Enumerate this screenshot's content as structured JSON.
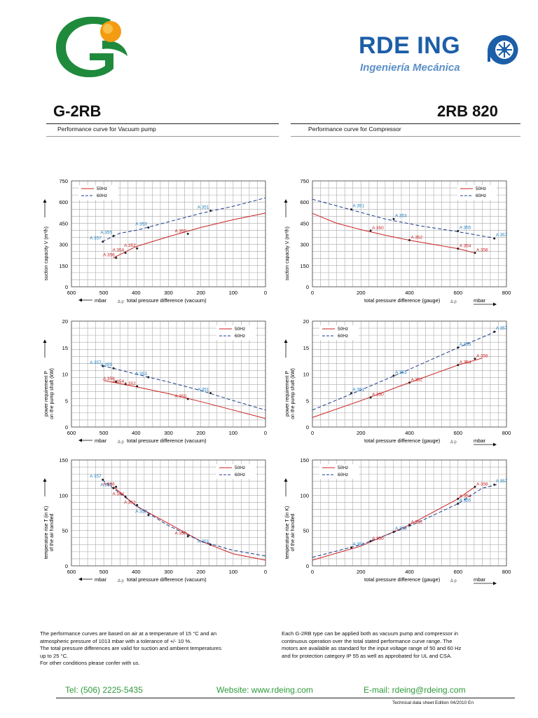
{
  "header": {
    "brand_name": "RDE ING",
    "brand_tagline": "Ingeniería Mecánica",
    "left_model": "G-2RB",
    "right_model": "2RB 820",
    "left_subtitle": "Performance curve for Vacuum pump",
    "right_subtitle": "Performance curve for Compressor"
  },
  "colors": {
    "red": "#cc2222",
    "blue": "#1a3a8c",
    "label_blue": "#1f7fc0",
    "green": "#2e9a3a",
    "grid": "#a9a9a9",
    "brand_blue": "#1c5ea8"
  },
  "chart_data": [
    {
      "id": "vac_capacity",
      "type": "line",
      "xlim": [
        600,
        0
      ],
      "ylim": [
        0,
        750
      ],
      "xticks": [
        600,
        500,
        400,
        300,
        200,
        100,
        0
      ],
      "yticks": [
        0,
        150,
        300,
        450,
        600,
        750
      ],
      "xlabel": "total pressure difference (vacuum)",
      "unit_label": "mbar",
      "delta_label": "Δ p",
      "ylabel": [
        "suction capacity V (m³/h)"
      ],
      "legend": [
        "50Hz",
        "60Hz"
      ],
      "legend_position": "top-left",
      "series": [
        {
          "name": "50Hz",
          "style": "solid",
          "x": [
            470,
            400,
            300,
            200,
            100,
            0
          ],
          "y": [
            205,
            285,
            355,
            420,
            475,
            522
          ]
        },
        {
          "name": "60Hz",
          "style": "dashed",
          "x": [
            505,
            450,
            400,
            300,
            200,
            100,
            0
          ],
          "y": [
            320,
            380,
            400,
            460,
            520,
            570,
            630
          ]
        }
      ],
      "points": [
        {
          "label": "A 357",
          "x": 503,
          "y": 320,
          "s": 1
        },
        {
          "label": "A 355",
          "x": 470,
          "y": 360,
          "s": 1
        },
        {
          "label": "A 353",
          "x": 362,
          "y": 420,
          "s": 1
        },
        {
          "label": "A 351",
          "x": 170,
          "y": 538,
          "s": 1
        },
        {
          "label": "A 356",
          "x": 462,
          "y": 205,
          "s": 0
        },
        {
          "label": "A 354",
          "x": 433,
          "y": 240,
          "s": 0
        },
        {
          "label": "A 352",
          "x": 397,
          "y": 272,
          "s": 0
        },
        {
          "label": "A 350",
          "x": 240,
          "y": 375,
          "s": 0
        }
      ]
    },
    {
      "id": "comp_capacity",
      "type": "line",
      "xlim": [
        0,
        800
      ],
      "ylim": [
        0,
        750
      ],
      "xticks": [
        0,
        200,
        400,
        600,
        800
      ],
      "yticks": [
        0,
        150,
        300,
        450,
        600,
        750
      ],
      "xlabel": "total pressure difference (gauge)",
      "unit_label": "mbar",
      "delta_label": "Δ p",
      "ylabel": [
        "suction capacity V (m³/h)"
      ],
      "legend": [
        "50Hz",
        "60Hz"
      ],
      "legend_position": "top-right",
      "series": [
        {
          "name": "50Hz",
          "style": "solid",
          "x": [
            0,
            100,
            200,
            300,
            400,
            500,
            600,
            670
          ],
          "y": [
            520,
            450,
            405,
            365,
            330,
            300,
            270,
            240
          ]
        },
        {
          "name": "60Hz",
          "style": "dashed",
          "x": [
            0,
            150,
            300,
            450,
            600,
            750
          ],
          "y": [
            620,
            550,
            480,
            430,
            390,
            345
          ]
        }
      ],
      "points": [
        {
          "label": "A 351",
          "x": 160,
          "y": 548,
          "s": 1
        },
        {
          "label": "A 353",
          "x": 335,
          "y": 480,
          "s": 1
        },
        {
          "label": "A 355",
          "x": 600,
          "y": 395,
          "s": 1
        },
        {
          "label": "A 357",
          "x": 750,
          "y": 342,
          "s": 1
        },
        {
          "label": "A 350",
          "x": 240,
          "y": 398,
          "s": 0
        },
        {
          "label": "A 352",
          "x": 400,
          "y": 330,
          "s": 0
        },
        {
          "label": "A 354",
          "x": 600,
          "y": 270,
          "s": 0
        },
        {
          "label": "A 356",
          "x": 670,
          "y": 240,
          "s": 0
        }
      ]
    },
    {
      "id": "vac_power",
      "type": "line",
      "xlim": [
        600,
        0
      ],
      "ylim": [
        0,
        20
      ],
      "xticks": [
        600,
        500,
        400,
        300,
        200,
        100,
        0
      ],
      "yticks": [
        0,
        5,
        10,
        15,
        20
      ],
      "xlabel": "total pressure difference (vacuum)",
      "unit_label": "mbar",
      "delta_label": "Δ p",
      "ylabel": [
        "power requirement P",
        "on the pump shaft (kW)"
      ],
      "legend": [
        "50Hz",
        "60Hz"
      ],
      "legend_position": "top-right",
      "series": [
        {
          "name": "50Hz",
          "style": "solid",
          "x": [
            500,
            400,
            300,
            200,
            100,
            0
          ],
          "y": [
            8.8,
            7.6,
            6.3,
            4.8,
            3.2,
            1.6
          ]
        },
        {
          "name": "60Hz",
          "style": "dashed",
          "x": [
            505,
            400,
            300,
            200,
            100,
            0
          ],
          "y": [
            11.6,
            10.0,
            8.5,
            6.9,
            5.0,
            3.2
          ]
        }
      ],
      "points": [
        {
          "label": "A 357",
          "x": 503,
          "y": 11.5,
          "s": 1
        },
        {
          "label": "A 355",
          "x": 470,
          "y": 11.1,
          "s": 1
        },
        {
          "label": "A 353",
          "x": 362,
          "y": 9.4,
          "s": 1
        },
        {
          "label": "A 351",
          "x": 170,
          "y": 6.4,
          "s": 1
        },
        {
          "label": "A 356",
          "x": 462,
          "y": 8.6,
          "s": 0
        },
        {
          "label": "A 354",
          "x": 433,
          "y": 8.1,
          "s": 0
        },
        {
          "label": "A 352",
          "x": 397,
          "y": 7.7,
          "s": 0
        },
        {
          "label": "A 350",
          "x": 240,
          "y": 5.3,
          "s": 0
        }
      ]
    },
    {
      "id": "comp_power",
      "type": "line",
      "xlim": [
        0,
        800
      ],
      "ylim": [
        0,
        20
      ],
      "xticks": [
        0,
        200,
        400,
        600,
        800
      ],
      "yticks": [
        0,
        5,
        10,
        15,
        20
      ],
      "xlabel": "total pressure difference (gauge)",
      "unit_label": "mbar",
      "delta_label": "Δ p",
      "ylabel": [
        "power requirement P",
        "on the pump shaft (kW)"
      ],
      "legend": [
        "50Hz",
        "60Hz"
      ],
      "legend_position": "top-left",
      "series": [
        {
          "name": "50Hz",
          "style": "solid",
          "x": [
            0,
            200,
            400,
            600,
            700
          ],
          "y": [
            1.8,
            5.0,
            8.4,
            11.7,
            13.0
          ]
        },
        {
          "name": "60Hz",
          "style": "dashed",
          "x": [
            0,
            200,
            400,
            600,
            760
          ],
          "y": [
            3.2,
            7.0,
            10.9,
            15.0,
            18.1
          ]
        }
      ],
      "points": [
        {
          "label": "A 351",
          "x": 160,
          "y": 6.4,
          "s": 1
        },
        {
          "label": "A 353",
          "x": 335,
          "y": 9.7,
          "s": 1
        },
        {
          "label": "A 355",
          "x": 600,
          "y": 15.0,
          "s": 1
        },
        {
          "label": "A 357",
          "x": 750,
          "y": 18.0,
          "s": 1
        },
        {
          "label": "A 350",
          "x": 240,
          "y": 5.6,
          "s": 0
        },
        {
          "label": "A 352",
          "x": 400,
          "y": 8.4,
          "s": 0
        },
        {
          "label": "A 354",
          "x": 600,
          "y": 11.7,
          "s": 0
        },
        {
          "label": "A 356",
          "x": 670,
          "y": 12.9,
          "s": 0
        }
      ]
    },
    {
      "id": "vac_temp",
      "type": "line",
      "xlim": [
        600,
        0
      ],
      "ylim": [
        0,
        150
      ],
      "xticks": [
        600,
        500,
        400,
        300,
        200,
        100,
        0
      ],
      "yticks": [
        0,
        50,
        100,
        150
      ],
      "xlabel": "total pressure difference (vacuum)",
      "unit_label": "mbar",
      "delta_label": "Δ p",
      "ylabel": [
        "temperature rise T (in K)",
        "of the air handled"
      ],
      "legend": [
        "50Hz",
        "60Hz"
      ],
      "legend_position": "top-right",
      "series": [
        {
          "name": "50Hz",
          "style": "solid",
          "x": [
            470,
            400,
            300,
            200,
            100,
            0
          ],
          "y": [
            112,
            85,
            60,
            35,
            17,
            8
          ]
        },
        {
          "name": "60Hz",
          "style": "dashed",
          "x": [
            505,
            400,
            300,
            200,
            100,
            0
          ],
          "y": [
            122,
            85,
            57,
            35,
            22,
            14
          ]
        }
      ],
      "points": [
        {
          "label": "A 357",
          "x": 503,
          "y": 122,
          "s": 1
        },
        {
          "label": "A 355",
          "x": 470,
          "y": 110,
          "s": 1
        },
        {
          "label": "A 353",
          "x": 362,
          "y": 72,
          "s": 1
        },
        {
          "label": "A 351",
          "x": 170,
          "y": 30,
          "s": 1
        },
        {
          "label": "A 356",
          "x": 462,
          "y": 112,
          "s": 0
        },
        {
          "label": "A 354",
          "x": 433,
          "y": 98,
          "s": 0
        },
        {
          "label": "A 352",
          "x": 397,
          "y": 86,
          "s": 0
        },
        {
          "label": "A 350",
          "x": 240,
          "y": 42,
          "s": 0
        }
      ]
    },
    {
      "id": "comp_temp",
      "type": "line",
      "xlim": [
        0,
        800
      ],
      "ylim": [
        0,
        150
      ],
      "xticks": [
        0,
        200,
        400,
        600,
        800
      ],
      "yticks": [
        0,
        50,
        100,
        150
      ],
      "xlabel": "total pressure difference (gauge)",
      "unit_label": "mbar",
      "delta_label": "Δ p",
      "ylabel": [
        "temperature rise T (in K)",
        "of the air handled"
      ],
      "legend": [
        "50Hz",
        "60Hz"
      ],
      "legend_position": "top-left",
      "series": [
        {
          "name": "50Hz",
          "style": "solid",
          "x": [
            0,
            200,
            400,
            600,
            670
          ],
          "y": [
            8,
            28,
            58,
            95,
            112
          ]
        },
        {
          "name": "60Hz",
          "style": "dashed",
          "x": [
            0,
            200,
            400,
            600,
            700,
            760
          ],
          "y": [
            12,
            30,
            56,
            88,
            110,
            115
          ]
        }
      ],
      "points": [
        {
          "label": "A 351",
          "x": 160,
          "y": 26,
          "s": 1
        },
        {
          "label": "A 353",
          "x": 335,
          "y": 48,
          "s": 1
        },
        {
          "label": "A 355",
          "x": 600,
          "y": 88,
          "s": 1
        },
        {
          "label": "A 357",
          "x": 750,
          "y": 115,
          "s": 1
        },
        {
          "label": "A 350",
          "x": 240,
          "y": 35,
          "s": 0
        },
        {
          "label": "A 352",
          "x": 400,
          "y": 58,
          "s": 0
        },
        {
          "label": "A 354",
          "x": 600,
          "y": 95,
          "s": 0
        },
        {
          "label": "A 356",
          "x": 670,
          "y": 112,
          "s": 0
        }
      ]
    }
  ],
  "notes": {
    "left": [
      "The performance curves are based on air at a temperature of 15 °C and an",
      "atmospheric pressure of 1013 mbar with a tolerance of +/- 10 %.",
      "The total pressure differences are valid for suction and ambient temperatures",
      "up to 25 °C.",
      "For other conditions please confer with us."
    ],
    "right": [
      "Each G-2RB type can be applied both as vacuum pump and compressor in",
      "continuous operation over the total stated performance curve range. The",
      "motors are available as standard for the input voltage range of 50 and 60 Hz",
      "and for protection category IP 55 as well as approbated for UL and CSA."
    ]
  },
  "footer": {
    "phone": "Tel: (506) 2225-5435",
    "website": "Website: www.rdeing.com",
    "email": "E-mail: rdeing@rdeing.com",
    "tech": "Technical data sheet Edition 04/2010 En"
  }
}
